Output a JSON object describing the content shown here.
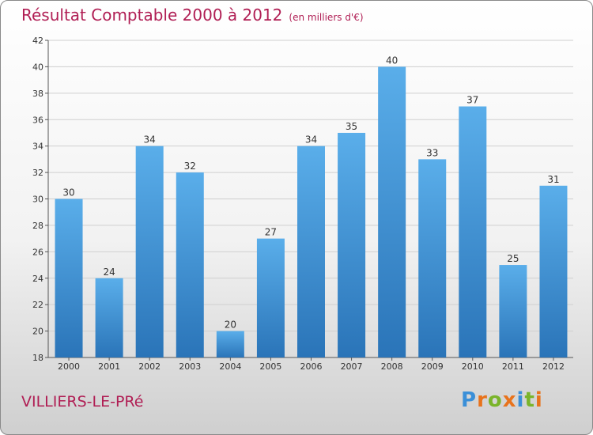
{
  "header": {
    "title": "Résultat Comptable 2000 à 2012",
    "subtitle": "(en milliers d'€)"
  },
  "footer": {
    "commune": "VILLIERS-LE-PRé",
    "logo": {
      "letters": [
        "P",
        "r",
        "o",
        "x",
        "i",
        "t",
        "i"
      ],
      "colors": [
        "#3a8fd8",
        "#e8731c",
        "#7ab42a",
        "#e8731c",
        "#3a8fd8",
        "#7ab42a",
        "#e8731c"
      ]
    }
  },
  "chart_data": {
    "type": "bar",
    "categories": [
      "2000",
      "2001",
      "2002",
      "2003",
      "2004",
      "2005",
      "2006",
      "2007",
      "2008",
      "2009",
      "2010",
      "2011",
      "2012"
    ],
    "values": [
      30,
      24,
      34,
      32,
      20,
      27,
      34,
      35,
      40,
      33,
      37,
      25,
      31
    ],
    "title": "Résultat Comptable 2000 à 2012",
    "subtitle": "(en milliers d'€)",
    "ylim": [
      18,
      42
    ],
    "yticks": [
      18,
      20,
      22,
      24,
      26,
      28,
      30,
      32,
      34,
      36,
      38,
      40,
      42
    ],
    "grid": true,
    "bar_color": "#3d8fd4"
  }
}
